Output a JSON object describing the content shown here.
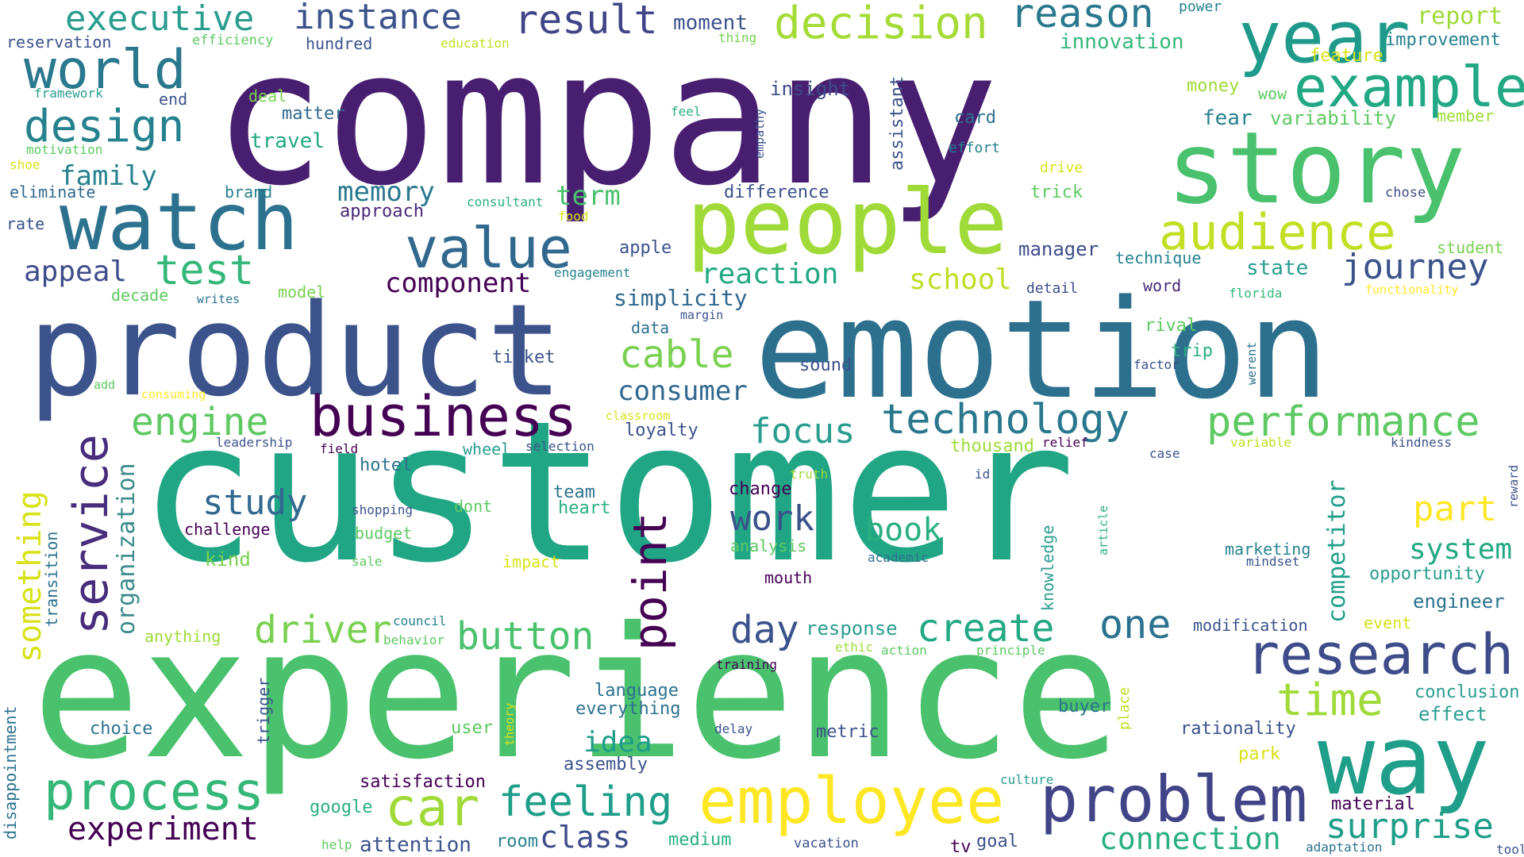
{
  "words": [
    {
      "text": "company",
      "color": "#481f70"
    },
    {
      "text": "customer",
      "color": "#21a685"
    },
    {
      "text": "experience",
      "color": "#4ac16d"
    },
    {
      "text": "emotion",
      "color": "#2d708e"
    },
    {
      "text": "product",
      "color": "#3b528b"
    },
    {
      "text": "story",
      "color": "#4ac16d"
    },
    {
      "text": "people",
      "color": "#a0da39"
    },
    {
      "text": "watch",
      "color": "#2c728e"
    },
    {
      "text": "year",
      "color": "#1f9a8a"
    },
    {
      "text": "world",
      "color": "#2a788e"
    },
    {
      "text": "example",
      "color": "#22a884"
    },
    {
      "text": "way",
      "color": "#1f9e89"
    },
    {
      "text": "employee",
      "color": "#fde725"
    },
    {
      "text": "problem",
      "color": "#414487"
    },
    {
      "text": "research",
      "color": "#3e4c8a"
    },
    {
      "text": "value",
      "color": "#31688e"
    },
    {
      "text": "business",
      "color": "#440154"
    },
    {
      "text": "service",
      "color": "#472d7b"
    },
    {
      "text": "audience",
      "color": "#c2df23"
    },
    {
      "text": "decision",
      "color": "#a5db36"
    },
    {
      "text": "design",
      "color": "#26818e"
    },
    {
      "text": "executive",
      "color": "#2a9d8f"
    },
    {
      "text": "instance",
      "color": "#3b528b"
    },
    {
      "text": "result",
      "color": "#414487"
    },
    {
      "text": "reason",
      "color": "#2a788e"
    },
    {
      "text": "process",
      "color": "#35b779"
    },
    {
      "text": "car",
      "color": "#a0da39"
    },
    {
      "text": "feeling",
      "color": "#1f9e89"
    },
    {
      "text": "technology",
      "color": "#2a788e"
    },
    {
      "text": "performance",
      "color": "#5ec962"
    },
    {
      "text": "journey",
      "color": "#3b528b"
    },
    {
      "text": "point",
      "color": "#440154"
    },
    {
      "text": "time",
      "color": "#a0da39"
    },
    {
      "text": "surprise",
      "color": "#1f9e89"
    },
    {
      "text": "experiment",
      "color": "#440154"
    },
    {
      "text": "something",
      "color": "#d8e219"
    },
    {
      "text": "engine",
      "color": "#5ec962"
    },
    {
      "text": "button",
      "color": "#4ac16d"
    },
    {
      "text": "driver",
      "color": "#7ad151"
    },
    {
      "text": "create",
      "color": "#22a884"
    },
    {
      "text": "one",
      "color": "#2c728e"
    },
    {
      "text": "test",
      "color": "#35b779"
    },
    {
      "text": "cable",
      "color": "#7ad151"
    },
    {
      "text": "focus",
      "color": "#2a9d8f"
    },
    {
      "text": "work",
      "color": "#3b528b"
    },
    {
      "text": "study",
      "color": "#31688e"
    },
    {
      "text": "day",
      "color": "#3b528b"
    },
    {
      "text": "book",
      "color": "#2ab07f"
    },
    {
      "text": "idea",
      "color": "#1f9e89"
    },
    {
      "text": "part",
      "color": "#fde725"
    },
    {
      "text": "system",
      "color": "#22a884"
    },
    {
      "text": "connection",
      "color": "#2ab07f"
    },
    {
      "text": "class",
      "color": "#3e4c8a"
    },
    {
      "text": "memory",
      "color": "#2a788e"
    },
    {
      "text": "reaction",
      "color": "#22a884"
    },
    {
      "text": "appeal",
      "color": "#3e4c8a"
    },
    {
      "text": "component",
      "color": "#440154"
    },
    {
      "text": "consumer",
      "color": "#31688e"
    },
    {
      "text": "family",
      "color": "#26818e"
    },
    {
      "text": "school",
      "color": "#bddf26"
    },
    {
      "text": "term",
      "color": "#4ac16d"
    },
    {
      "text": "competitor",
      "color": "#1f9e89"
    },
    {
      "text": "organization",
      "color": "#3b8b8b"
    },
    {
      "text": "simplicity",
      "color": "#31688e"
    },
    {
      "text": "moment",
      "color": "#3b528b"
    },
    {
      "text": "report",
      "color": "#a0da39"
    },
    {
      "text": "innovation",
      "color": "#35b779"
    },
    {
      "text": "improvement",
      "color": "#26818e"
    },
    {
      "text": "feature",
      "color": "#d8e219"
    },
    {
      "text": "reservation",
      "color": "#3b528b"
    },
    {
      "text": "efficiency",
      "color": "#5ec962"
    },
    {
      "text": "hundred",
      "color": "#3b528b"
    },
    {
      "text": "education",
      "color": "#c2df23"
    },
    {
      "text": "thing",
      "color": "#7ad151"
    },
    {
      "text": "power",
      "color": "#26818e"
    },
    {
      "text": "framework",
      "color": "#2a9d8f"
    },
    {
      "text": "end",
      "color": "#3b528b"
    },
    {
      "text": "deal",
      "color": "#7ad151"
    },
    {
      "text": "insight",
      "color": "#3e4c8a"
    },
    {
      "text": "money",
      "color": "#a0da39"
    },
    {
      "text": "wow",
      "color": "#5ec962"
    },
    {
      "text": "matter",
      "color": "#31688e"
    },
    {
      "text": "feel",
      "color": "#2ab07f"
    },
    {
      "text": "assistant",
      "color": "#3b528b"
    },
    {
      "text": "card",
      "color": "#2c728e"
    },
    {
      "text": "fear",
      "color": "#26818e"
    },
    {
      "text": "variability",
      "color": "#5ec962"
    },
    {
      "text": "member",
      "color": "#a0da39"
    },
    {
      "text": "motivation",
      "color": "#5ec962"
    },
    {
      "text": "travel",
      "color": "#22a884"
    },
    {
      "text": "empathy",
      "color": "#3b528b"
    },
    {
      "text": "effort",
      "color": "#26818e"
    },
    {
      "text": "shoe",
      "color": "#d8e219"
    },
    {
      "text": "drive",
      "color": "#d8e219"
    },
    {
      "text": "eliminate",
      "color": "#31688e"
    },
    {
      "text": "brand",
      "color": "#26818e"
    },
    {
      "text": "difference",
      "color": "#3b528b"
    },
    {
      "text": "trick",
      "color": "#5ec962"
    },
    {
      "text": "chose",
      "color": "#3e4c8a"
    },
    {
      "text": "approach",
      "color": "#482878"
    },
    {
      "text": "consultant",
      "color": "#2ab07f"
    },
    {
      "text": "food",
      "color": "#d8e219"
    },
    {
      "text": "rate",
      "color": "#3b528b"
    },
    {
      "text": "apple",
      "color": "#3b528b"
    },
    {
      "text": "manager",
      "color": "#3e4c8a"
    },
    {
      "text": "technique",
      "color": "#26818e"
    },
    {
      "text": "student",
      "color": "#7ad151"
    },
    {
      "text": "state",
      "color": "#2a9d8f"
    },
    {
      "text": "word",
      "color": "#482878"
    },
    {
      "text": "engagement",
      "color": "#26818e"
    },
    {
      "text": "detail",
      "color": "#3e4c8a"
    },
    {
      "text": "decade",
      "color": "#5ec962"
    },
    {
      "text": "model",
      "color": "#7ad151"
    },
    {
      "text": "florida",
      "color": "#35b779"
    },
    {
      "text": "functionality",
      "color": "#fde725"
    },
    {
      "text": "writes",
      "color": "#2c728e"
    },
    {
      "text": "margin",
      "color": "#3b528b"
    },
    {
      "text": "data",
      "color": "#2c728e"
    },
    {
      "text": "rival",
      "color": "#5ec962"
    },
    {
      "text": "trip",
      "color": "#2ab07f"
    },
    {
      "text": "werent",
      "color": "#2c728e"
    },
    {
      "text": "ticket",
      "color": "#3b528b"
    },
    {
      "text": "sound",
      "color": "#3b528b"
    },
    {
      "text": "factor",
      "color": "#3b528b"
    },
    {
      "text": "add",
      "color": "#5ec962"
    },
    {
      "text": "consuming",
      "color": "#fde725"
    },
    {
      "text": "classroom",
      "color": "#d8e219"
    },
    {
      "text": "loyalty",
      "color": "#3b528b"
    },
    {
      "text": "leadership",
      "color": "#3b528b"
    },
    {
      "text": "field",
      "color": "#440154"
    },
    {
      "text": "selection",
      "color": "#3b528b"
    },
    {
      "text": "wheel",
      "color": "#2a9d8f"
    },
    {
      "text": "thousand",
      "color": "#a0da39"
    },
    {
      "text": "relief",
      "color": "#440154"
    },
    {
      "text": "variable",
      "color": "#c2df23"
    },
    {
      "text": "kindness",
      "color": "#3b528b"
    },
    {
      "text": "case",
      "color": "#3b528b"
    },
    {
      "text": "hotel",
      "color": "#2c728e"
    },
    {
      "text": "truth",
      "color": "#a0da39"
    },
    {
      "text": "id",
      "color": "#3b528b"
    },
    {
      "text": "change",
      "color": "#440154"
    },
    {
      "text": "reward",
      "color": "#3b528b"
    },
    {
      "text": "team",
      "color": "#2c728e"
    },
    {
      "text": "heart",
      "color": "#2ab07f"
    },
    {
      "text": "dont",
      "color": "#5ec962"
    },
    {
      "text": "shopping",
      "color": "#3b528b"
    },
    {
      "text": "article",
      "color": "#2ab07f"
    },
    {
      "text": "knowledge",
      "color": "#2a9d8f"
    },
    {
      "text": "challenge",
      "color": "#440154"
    },
    {
      "text": "budget",
      "color": "#5ec962"
    },
    {
      "text": "analysis",
      "color": "#5ec962"
    },
    {
      "text": "marketing",
      "color": "#26818e"
    },
    {
      "text": "mindset",
      "color": "#3b528b"
    },
    {
      "text": "academic",
      "color": "#2c728e"
    },
    {
      "text": "kind",
      "color": "#7ad151"
    },
    {
      "text": "sale",
      "color": "#5ec962"
    },
    {
      "text": "impact",
      "color": "#d8e219"
    },
    {
      "text": "opportunity",
      "color": "#2a9d8f"
    },
    {
      "text": "mouth",
      "color": "#440154"
    },
    {
      "text": "engineer",
      "color": "#2c728e"
    },
    {
      "text": "transition",
      "color": "#2c728e"
    },
    {
      "text": "council",
      "color": "#26818e"
    },
    {
      "text": "anything",
      "color": "#a0da39"
    },
    {
      "text": "behavior",
      "color": "#5ec962"
    },
    {
      "text": "response",
      "color": "#2a9d8f"
    },
    {
      "text": "modification",
      "color": "#3b528b"
    },
    {
      "text": "event",
      "color": "#d8e219"
    },
    {
      "text": "ethic",
      "color": "#a0da39"
    },
    {
      "text": "action",
      "color": "#5ec962"
    },
    {
      "text": "principle",
      "color": "#5ec962"
    },
    {
      "text": "training",
      "color": "#440154"
    },
    {
      "text": "trigger",
      "color": "#3b528b"
    },
    {
      "text": "language",
      "color": "#2c728e"
    },
    {
      "text": "conclusion",
      "color": "#2a9d8f"
    },
    {
      "text": "theory",
      "color": "#d8e219"
    },
    {
      "text": "everything",
      "color": "#2c728e"
    },
    {
      "text": "buyer",
      "color": "#2c728e"
    },
    {
      "text": "place",
      "color": "#c2df23"
    },
    {
      "text": "effect",
      "color": "#2a9d8f"
    },
    {
      "text": "disappointment",
      "color": "#2c728e"
    },
    {
      "text": "choice",
      "color": "#2c728e"
    },
    {
      "text": "user",
      "color": "#5ec962"
    },
    {
      "text": "delay",
      "color": "#3b528b"
    },
    {
      "text": "metric",
      "color": "#3b528b"
    },
    {
      "text": "rationality",
      "color": "#3b528b"
    },
    {
      "text": "park",
      "color": "#d8e219"
    },
    {
      "text": "assembly",
      "color": "#3b528b"
    },
    {
      "text": "satisfaction",
      "color": "#440154"
    },
    {
      "text": "culture",
      "color": "#2a9d8f"
    },
    {
      "text": "material",
      "color": "#440154"
    },
    {
      "text": "google",
      "color": "#2ab07f"
    },
    {
      "text": "help",
      "color": "#5ec962"
    },
    {
      "text": "attention",
      "color": "#3b528b"
    },
    {
      "text": "room",
      "color": "#26818e"
    },
    {
      "text": "medium",
      "color": "#2ab07f"
    },
    {
      "text": "vacation",
      "color": "#3b528b"
    },
    {
      "text": "tv",
      "color": "#440154"
    },
    {
      "text": "goal",
      "color": "#3b528b"
    },
    {
      "text": "adaptation",
      "color": "#2c728e"
    },
    {
      "text": "tool",
      "color": "#3b528b"
    }
  ]
}
